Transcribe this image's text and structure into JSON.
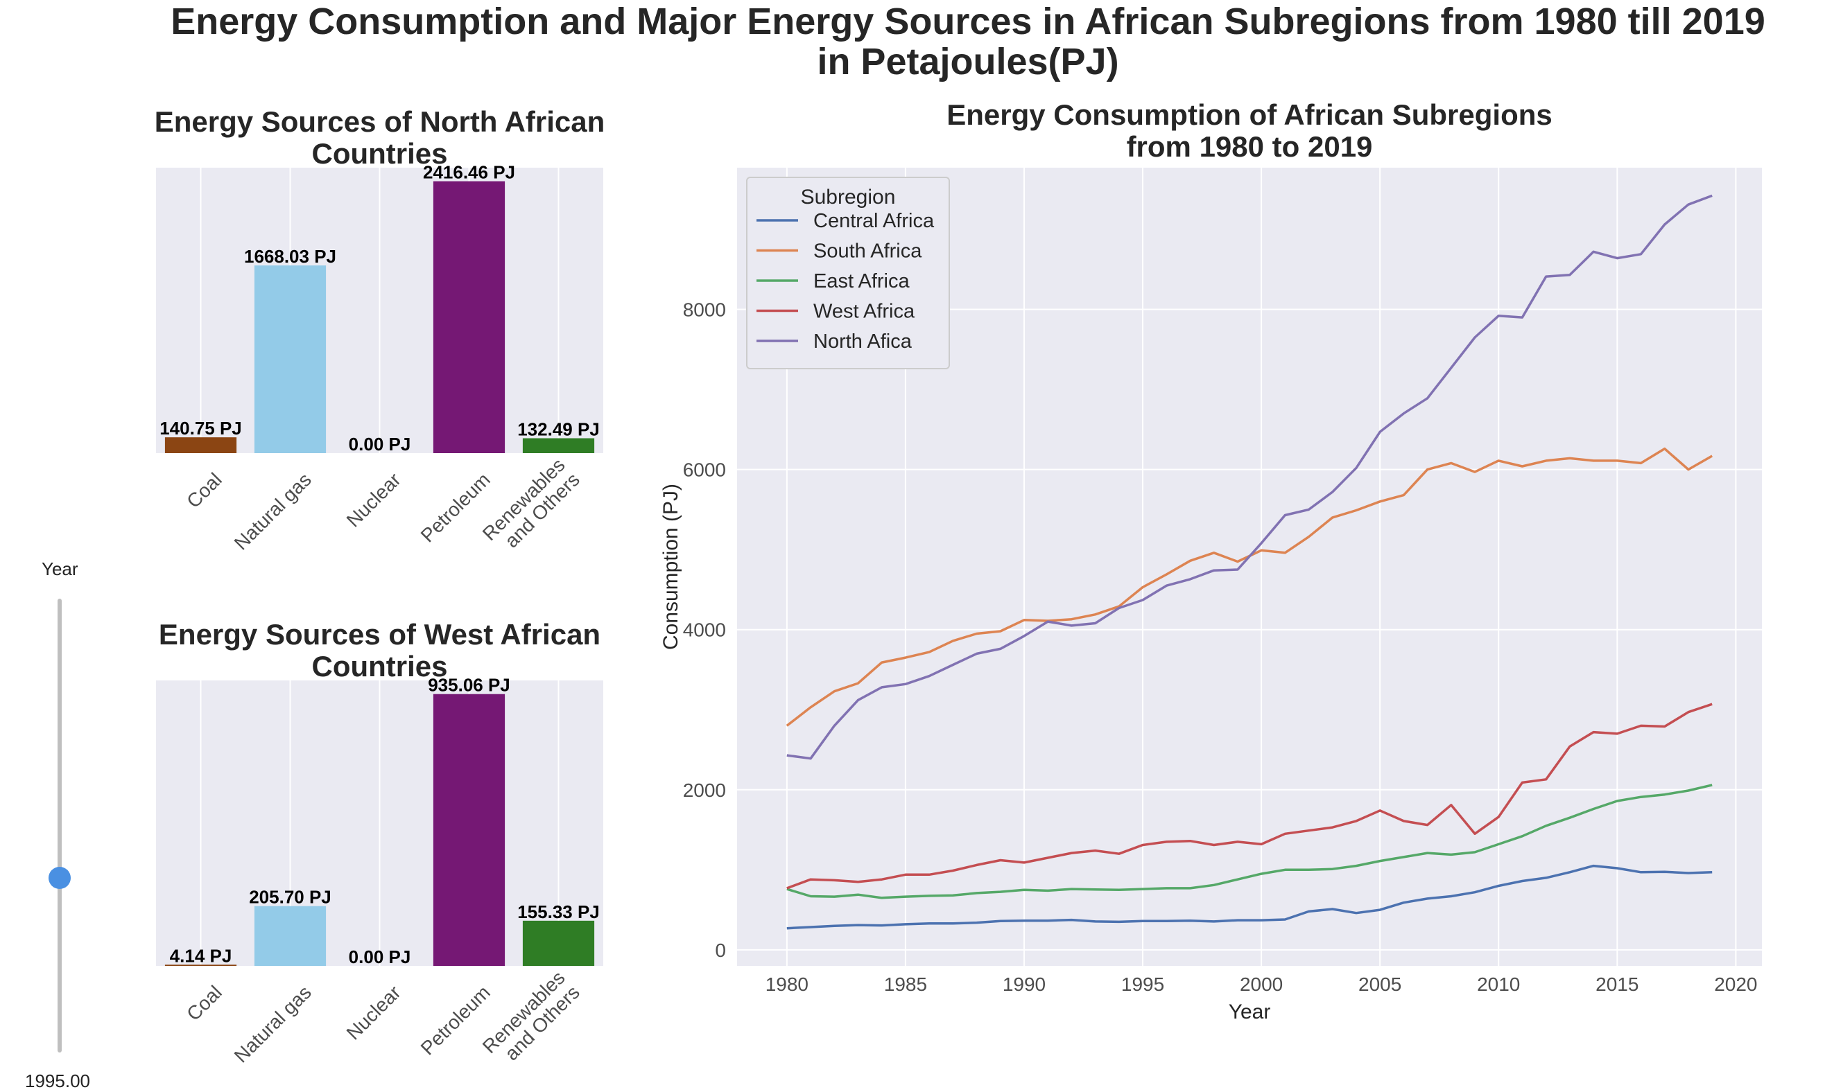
{
  "title_line1": "Energy Consumption and Major Energy Sources in African Subregions from 1980 till 2019",
  "title_line2": "in Petajoules(PJ)",
  "slider": {
    "label": "Year",
    "value_text": "1995.00",
    "value": 1995,
    "min": 1980,
    "max": 2019,
    "color": "#4a90e2"
  },
  "chart_data": [
    {
      "type": "bar",
      "title": "Energy Sources of North African Countries",
      "title_lines": [
        "Energy Sources of North African",
        "Countries"
      ],
      "categories": [
        "Coal",
        "Natural gas",
        "Nuclear",
        "Petroleum",
        "Renewables and Others"
      ],
      "category_label_lines": [
        [
          "Coal"
        ],
        [
          "Natural gas"
        ],
        [
          "Nuclear"
        ],
        [
          "Petroleum"
        ],
        [
          "Renewables",
          "and Others"
        ]
      ],
      "values": [
        140.75,
        1668.03,
        0.0,
        2416.46,
        132.49
      ],
      "value_labels": [
        "140.75 PJ",
        "1668.03 PJ",
        "0.00 PJ",
        "2416.46 PJ",
        "132.49 PJ"
      ],
      "colors": [
        "#8b4513",
        "#93cbe8",
        "#7d2a8c",
        "#751874",
        "#2f7d25"
      ],
      "ylim": [
        0,
        2537
      ]
    },
    {
      "type": "bar",
      "title": "Energy Sources of West African Countries",
      "title_lines": [
        "Energy Sources of West African",
        "Countries"
      ],
      "categories": [
        "Coal",
        "Natural gas",
        "Nuclear",
        "Petroleum",
        "Renewables and Others"
      ],
      "category_label_lines": [
        [
          "Coal"
        ],
        [
          "Natural gas"
        ],
        [
          "Nuclear"
        ],
        [
          "Petroleum"
        ],
        [
          "Renewables",
          "and Others"
        ]
      ],
      "values": [
        4.14,
        205.7,
        0.0,
        935.06,
        155.33
      ],
      "value_labels": [
        "4.14 PJ",
        "205.70 PJ",
        "0.00 PJ",
        "935.06 PJ",
        "155.33 PJ"
      ],
      "colors": [
        "#8b4513",
        "#93cbe8",
        "#7d2a8c",
        "#751874",
        "#2f7d25"
      ],
      "ylim": [
        0,
        982
      ]
    },
    {
      "type": "line",
      "title": "Energy Consumption of African Subregions from 1980 to 2019",
      "title_lines": [
        "Energy Consumption of African Subregions",
        "from 1980 to 2019"
      ],
      "xlabel": "Year",
      "ylabel": "Consumption (PJ)",
      "xlim": [
        1977.9,
        2021.1
      ],
      "ylim": [
        -200,
        9770
      ],
      "xticks": [
        1980,
        1985,
        1990,
        1995,
        2000,
        2005,
        2010,
        2015,
        2020
      ],
      "yticks": [
        0,
        2000,
        4000,
        6000,
        8000
      ],
      "legend_title": "Subregion",
      "legend_position": "upper left",
      "grid": true,
      "x": [
        1980,
        1981,
        1982,
        1983,
        1984,
        1985,
        1986,
        1987,
        1988,
        1989,
        1990,
        1991,
        1992,
        1993,
        1994,
        1995,
        1996,
        1997,
        1998,
        1999,
        2000,
        2001,
        2002,
        2003,
        2004,
        2005,
        2006,
        2007,
        2008,
        2009,
        2010,
        2011,
        2012,
        2013,
        2014,
        2015,
        2016,
        2017,
        2018,
        2019
      ],
      "series": [
        {
          "name": "Central Africa",
          "color": "#4c72b0",
          "values": [
            270,
            285,
            300,
            310,
            305,
            320,
            330,
            330,
            340,
            360,
            365,
            365,
            375,
            355,
            350,
            360,
            360,
            365,
            355,
            370,
            370,
            380,
            480,
            510,
            460,
            500,
            590,
            640,
            670,
            720,
            800,
            860,
            900,
            970,
            1050,
            1020,
            970,
            975,
            960,
            970
          ]
        },
        {
          "name": "South Africa",
          "color": "#dd8452",
          "values": [
            2800,
            3030,
            3230,
            3330,
            3590,
            3650,
            3720,
            3860,
            3950,
            3980,
            4120,
            4110,
            4130,
            4190,
            4290,
            4530,
            4690,
            4860,
            4960,
            4850,
            4990,
            4960,
            5160,
            5400,
            5490,
            5600,
            5680,
            6000,
            6080,
            5970,
            6110,
            6040,
            6110,
            6140,
            6110,
            6110,
            6080,
            6260,
            6000,
            6170
          ]
        },
        {
          "name": "East Africa",
          "color": "#55a868",
          "values": [
            760,
            670,
            665,
            690,
            650,
            665,
            675,
            680,
            710,
            725,
            750,
            740,
            760,
            755,
            750,
            760,
            770,
            770,
            810,
            880,
            950,
            1000,
            1000,
            1010,
            1050,
            1110,
            1160,
            1210,
            1190,
            1220,
            1320,
            1420,
            1550,
            1650,
            1760,
            1860,
            1910,
            1940,
            1990,
            2060
          ]
        },
        {
          "name": "West Africa",
          "color": "#c44e52",
          "values": [
            770,
            880,
            870,
            850,
            880,
            940,
            940,
            990,
            1060,
            1120,
            1090,
            1150,
            1210,
            1240,
            1200,
            1310,
            1350,
            1360,
            1310,
            1350,
            1320,
            1450,
            1490,
            1530,
            1610,
            1740,
            1610,
            1560,
            1810,
            1450,
            1660,
            2090,
            2130,
            2540,
            2720,
            2700,
            2800,
            2790,
            2970,
            3070
          ]
        },
        {
          "name": "North Afica",
          "color": "#8172b2",
          "values": [
            2430,
            2390,
            2800,
            3120,
            3280,
            3320,
            3420,
            3560,
            3700,
            3760,
            3920,
            4100,
            4050,
            4080,
            4270,
            4370,
            4550,
            4630,
            4740,
            4750,
            5080,
            5430,
            5500,
            5720,
            6020,
            6470,
            6700,
            6890,
            7270,
            7650,
            7920,
            7900,
            8410,
            8430,
            8720,
            8640,
            8690,
            9060,
            9310,
            9420
          ]
        }
      ]
    }
  ]
}
